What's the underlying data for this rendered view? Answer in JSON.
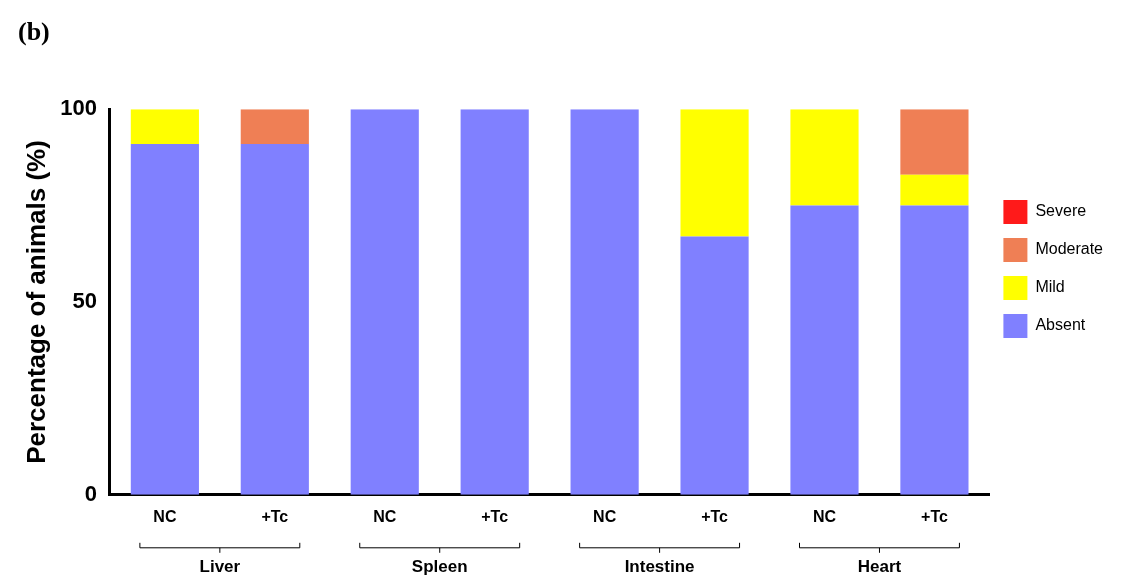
{
  "chart_data": {
    "type": "bar",
    "title": "(b)",
    "ylabel": "Percentage of animals (%)",
    "categories": [
      "NC",
      "+Tc",
      "NC",
      "+Tc",
      "NC",
      "+Tc",
      "NC",
      "+Tc"
    ],
    "series": [
      {
        "name": "Absent",
        "color": "#8080ff",
        "values": [
          91,
          91,
          100,
          100,
          100,
          67,
          75,
          75
        ]
      },
      {
        "name": "Mild",
        "color": "#ffff00",
        "values": [
          9,
          0,
          0,
          0,
          0,
          33,
          25,
          8
        ]
      },
      {
        "name": "Moderate",
        "color": "#ef7f55",
        "values": [
          0,
          9,
          0,
          0,
          0,
          0,
          0,
          17
        ]
      },
      {
        "name": "Severe",
        "color": "#ff1a1a",
        "values": [
          0,
          0,
          0,
          0,
          0,
          0,
          0,
          0
        ]
      }
    ],
    "stacked": true,
    "ylim": [
      0,
      100
    ],
    "yticks": [
      0,
      50,
      100
    ],
    "grid": false,
    "legend": "right",
    "annotations": [
      "Liver",
      "Spleen",
      "Intestine",
      "Heart"
    ]
  }
}
